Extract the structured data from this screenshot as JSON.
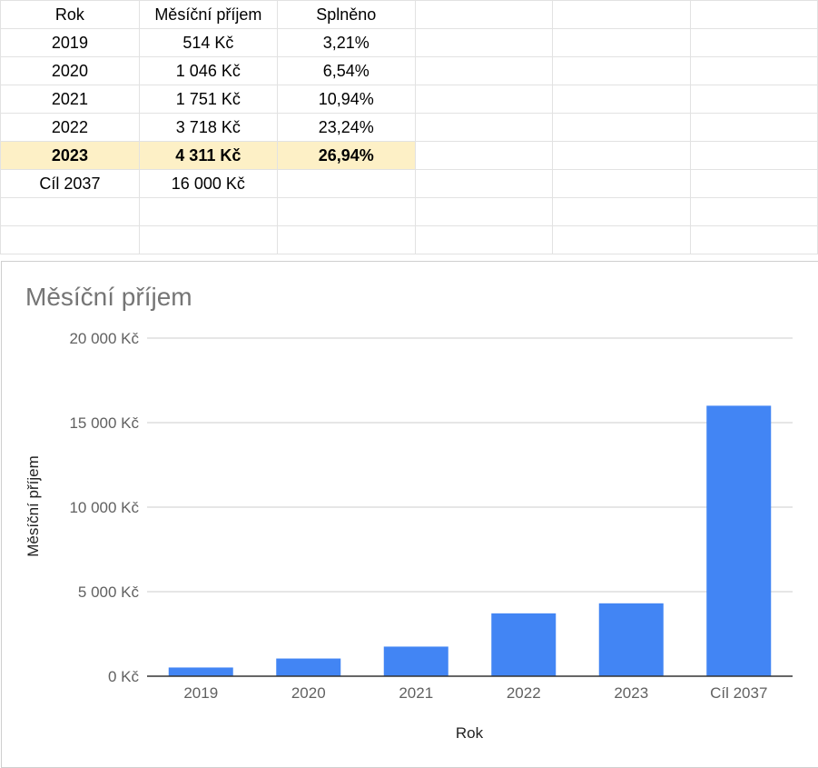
{
  "sheet": {
    "headers": [
      "Rok",
      "Měsíční příjem",
      "Splněno"
    ],
    "rows": [
      [
        "2019",
        "514 Kč",
        "3,21%"
      ],
      [
        "2020",
        "1 046 Kč",
        "6,54%"
      ],
      [
        "2021",
        "1 751 Kč",
        "10,94%"
      ],
      [
        "2022",
        "3 718 Kč",
        "23,24%"
      ],
      [
        "2023",
        "4 311 Kč",
        "26,94%"
      ],
      [
        "Cíl 2037",
        "16 000 Kč",
        ""
      ]
    ],
    "highlight_row": 4,
    "highlight_color": "#fdf0c6"
  },
  "chart_data": {
    "type": "bar",
    "title": "Měsíční příjem",
    "xlabel": "Rok",
    "ylabel": "Měsíční příjem",
    "categories": [
      "2019",
      "2020",
      "2021",
      "2022",
      "2023",
      "Cíl 2037"
    ],
    "values": [
      514,
      1046,
      1751,
      3718,
      4311,
      16000
    ],
    "ylim": [
      0,
      20000
    ],
    "yticks": [
      0,
      5000,
      10000,
      15000,
      20000
    ],
    "ytick_labels": [
      "0 Kč",
      "5 000 Kč",
      "10 000 Kč",
      "15 000 Kč",
      "20 000 Kč"
    ],
    "grid": true,
    "legend": "none",
    "bar_color": "#4285f4"
  }
}
